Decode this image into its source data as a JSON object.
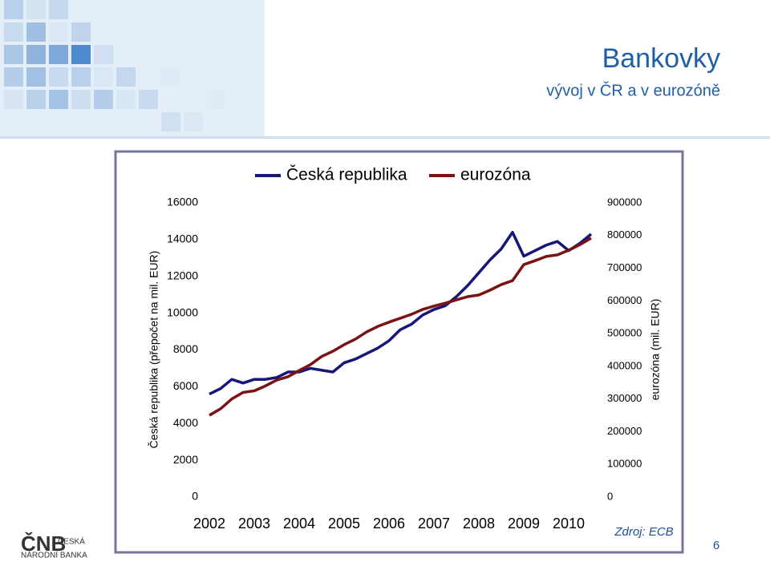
{
  "header": {
    "title": "Bankovky",
    "subtitle": "vývoj v ČR a v eurozóně"
  },
  "chart_data": {
    "type": "line",
    "categories": [
      "2002",
      null,
      null,
      null,
      "2003",
      null,
      null,
      null,
      "2004",
      null,
      null,
      null,
      "2005",
      null,
      null,
      null,
      "2006",
      null,
      null,
      null,
      "2007",
      null,
      null,
      null,
      "2008",
      null,
      null,
      null,
      "2009",
      null,
      null,
      null,
      "2010",
      null,
      null
    ],
    "series": [
      {
        "name": "Česká republika",
        "color": "#17177a",
        "values": [
          5600,
          5900,
          6400,
          6200,
          6400,
          6400,
          6500,
          6800,
          6800,
          7000,
          6900,
          6800,
          7300,
          7500,
          7800,
          8100,
          8500,
          9100,
          9400,
          9900,
          10200,
          10400,
          10900,
          11500,
          12200,
          12900,
          13500,
          14400,
          13100,
          13400,
          13700,
          13900,
          13400,
          13800,
          14300
        ]
      },
      {
        "name": "eurozóna",
        "color": "#7a1414",
        "axis": "y2",
        "values": [
          250000,
          270000,
          300000,
          320000,
          325000,
          340000,
          358000,
          368000,
          387000,
          405000,
          430000,
          446000,
          466000,
          483000,
          505000,
          522000,
          535000,
          547000,
          559000,
          574000,
          584000,
          593000,
          603000,
          613000,
          618000,
          633000,
          650000,
          662000,
          711000,
          723000,
          736000,
          741000,
          755000,
          772000,
          792000
        ]
      }
    ],
    "ylabel": "Česká republika (přepočet na mil. EUR)",
    "y2label": "eurozóna (mil. EUR)",
    "ylim": [
      0,
      16000
    ],
    "yticks": [
      0,
      2000,
      4000,
      6000,
      8000,
      10000,
      12000,
      14000,
      16000
    ],
    "y2lim": [
      0,
      900000
    ],
    "y2ticks": [
      0,
      100000,
      200000,
      300000,
      400000,
      500000,
      600000,
      700000,
      800000,
      900000
    ],
    "grid": false,
    "legend": "top"
  },
  "footer": {
    "source": "Zdroj: ECB",
    "page": "6",
    "logo": "ČNB",
    "logo_line1": "ČESKÁ",
    "logo_line2": "NÁRODNÍ BANKA"
  }
}
